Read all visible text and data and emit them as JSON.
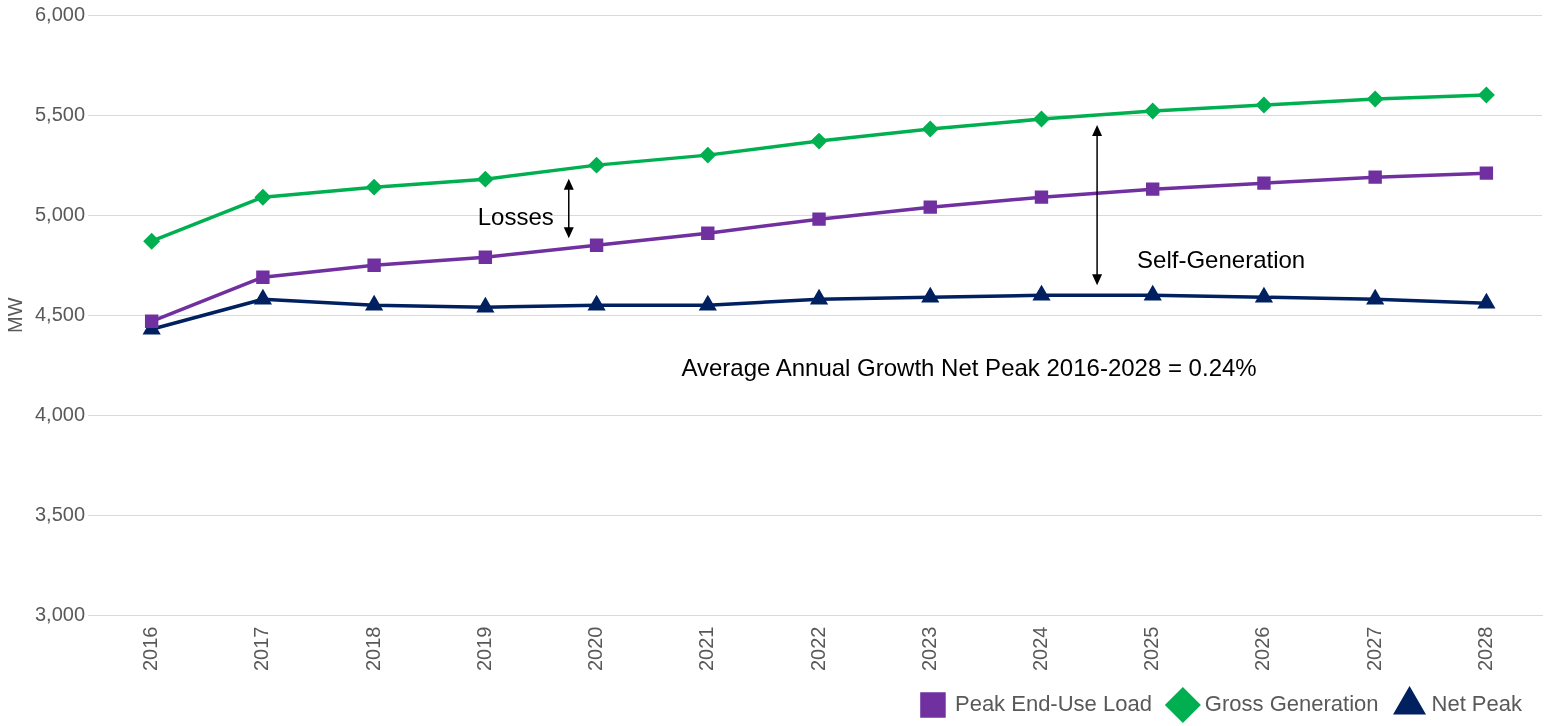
{
  "chart_data": {
    "type": "line",
    "ylabel": "MW",
    "categories": [
      "2016",
      "2017",
      "2018",
      "2019",
      "2020",
      "2021",
      "2022",
      "2023",
      "2024",
      "2025",
      "2026",
      "2027",
      "2028"
    ],
    "series": [
      {
        "name": "Peak End-Use Load",
        "color": "#7030a0",
        "marker": "square",
        "values": [
          4470,
          4690,
          4750,
          4790,
          4850,
          4910,
          4980,
          5040,
          5090,
          5130,
          5160,
          5190,
          5210
        ]
      },
      {
        "name": "Gross Generation",
        "color": "#00b050",
        "marker": "diamond",
        "values": [
          4870,
          5090,
          5140,
          5180,
          5250,
          5300,
          5370,
          5430,
          5480,
          5520,
          5550,
          5580,
          5600
        ]
      },
      {
        "name": "Net Peak",
        "color": "#002060",
        "marker": "triangle",
        "values": [
          4430,
          4580,
          4550,
          4540,
          4550,
          4550,
          4580,
          4590,
          4600,
          4600,
          4590,
          4580,
          4560
        ]
      }
    ],
    "ylim": [
      3000,
      6000
    ],
    "yticks": [
      {
        "value": 3000,
        "label": "3,000"
      },
      {
        "value": 3500,
        "label": "3,500"
      },
      {
        "value": 4000,
        "label": "4,000"
      },
      {
        "value": 4500,
        "label": "4,500"
      },
      {
        "value": 5000,
        "label": "5,000"
      },
      {
        "value": 5500,
        "label": "5,500"
      },
      {
        "value": 6000,
        "label": "6,000"
      }
    ],
    "grid": "y",
    "legend": "bottom",
    "line_style": "solid",
    "annotations": [
      "Losses",
      "Self-Generation",
      "Average Annual Growth Net Peak 2016-2028 = 0.24%"
    ]
  }
}
